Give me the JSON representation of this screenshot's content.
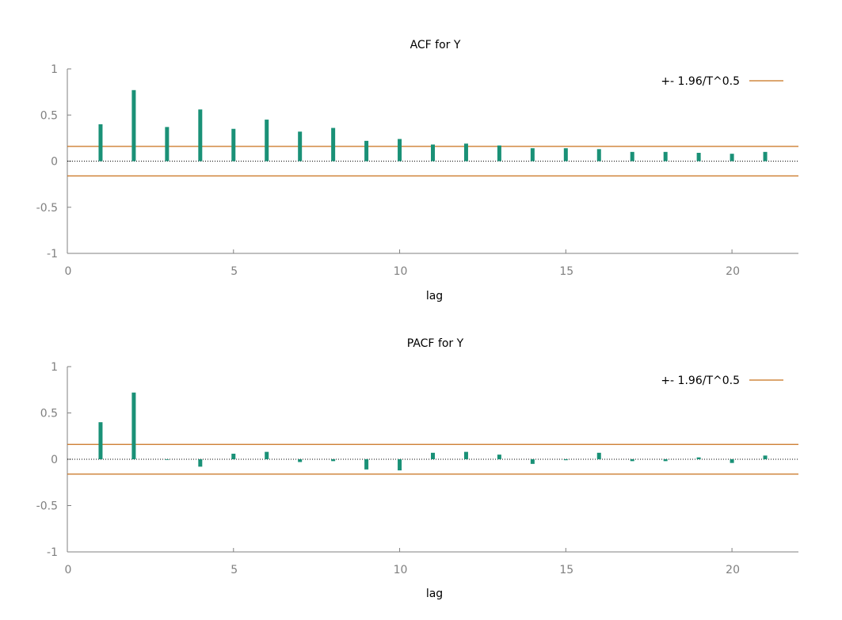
{
  "colors": {
    "bar": "#1a9177",
    "band": "#c8701b",
    "axis": "#808080",
    "zero": "#000000"
  },
  "chart_data": [
    {
      "type": "bar",
      "title": "ACF for Y",
      "xlabel": "lag",
      "ylabel": "",
      "xlim": [
        0,
        22
      ],
      "ylim": [
        -1,
        1
      ],
      "x_ticks": [
        "0",
        "5",
        "10",
        "15",
        "20"
      ],
      "y_ticks": [
        "1",
        "0.5",
        "0",
        "-0.5",
        "-1"
      ],
      "grid": false,
      "legend": {
        "label": "+- 1.96/T^0.5",
        "placement": "top-right"
      },
      "band": 0.16,
      "lags": [
        1,
        2,
        3,
        4,
        5,
        6,
        7,
        8,
        9,
        10,
        11,
        12,
        13,
        14,
        15,
        16,
        17,
        18,
        19,
        20,
        21
      ],
      "values": [
        0.4,
        0.77,
        0.37,
        0.56,
        0.35,
        0.45,
        0.32,
        0.36,
        0.22,
        0.24,
        0.18,
        0.19,
        0.17,
        0.14,
        0.14,
        0.13,
        0.1,
        0.1,
        0.09,
        0.08,
        0.1
      ]
    },
    {
      "type": "bar",
      "title": "PACF for Y",
      "xlabel": "lag",
      "ylabel": "",
      "xlim": [
        0,
        22
      ],
      "ylim": [
        -1,
        1
      ],
      "x_ticks": [
        "0",
        "5",
        "10",
        "15",
        "20"
      ],
      "y_ticks": [
        "1",
        "0.5",
        "0",
        "-0.5",
        "-1"
      ],
      "grid": false,
      "legend": {
        "label": "+- 1.96/T^0.5",
        "placement": "top-right"
      },
      "band": 0.16,
      "lags": [
        1,
        2,
        3,
        4,
        5,
        6,
        7,
        8,
        9,
        10,
        11,
        12,
        13,
        14,
        15,
        16,
        17,
        18,
        19,
        20,
        21
      ],
      "values": [
        0.4,
        0.72,
        0.0,
        -0.08,
        0.06,
        0.08,
        -0.03,
        -0.02,
        -0.11,
        -0.12,
        0.07,
        0.08,
        0.05,
        -0.05,
        -0.01,
        0.07,
        -0.02,
        -0.02,
        0.02,
        -0.04,
        0.04
      ]
    }
  ]
}
